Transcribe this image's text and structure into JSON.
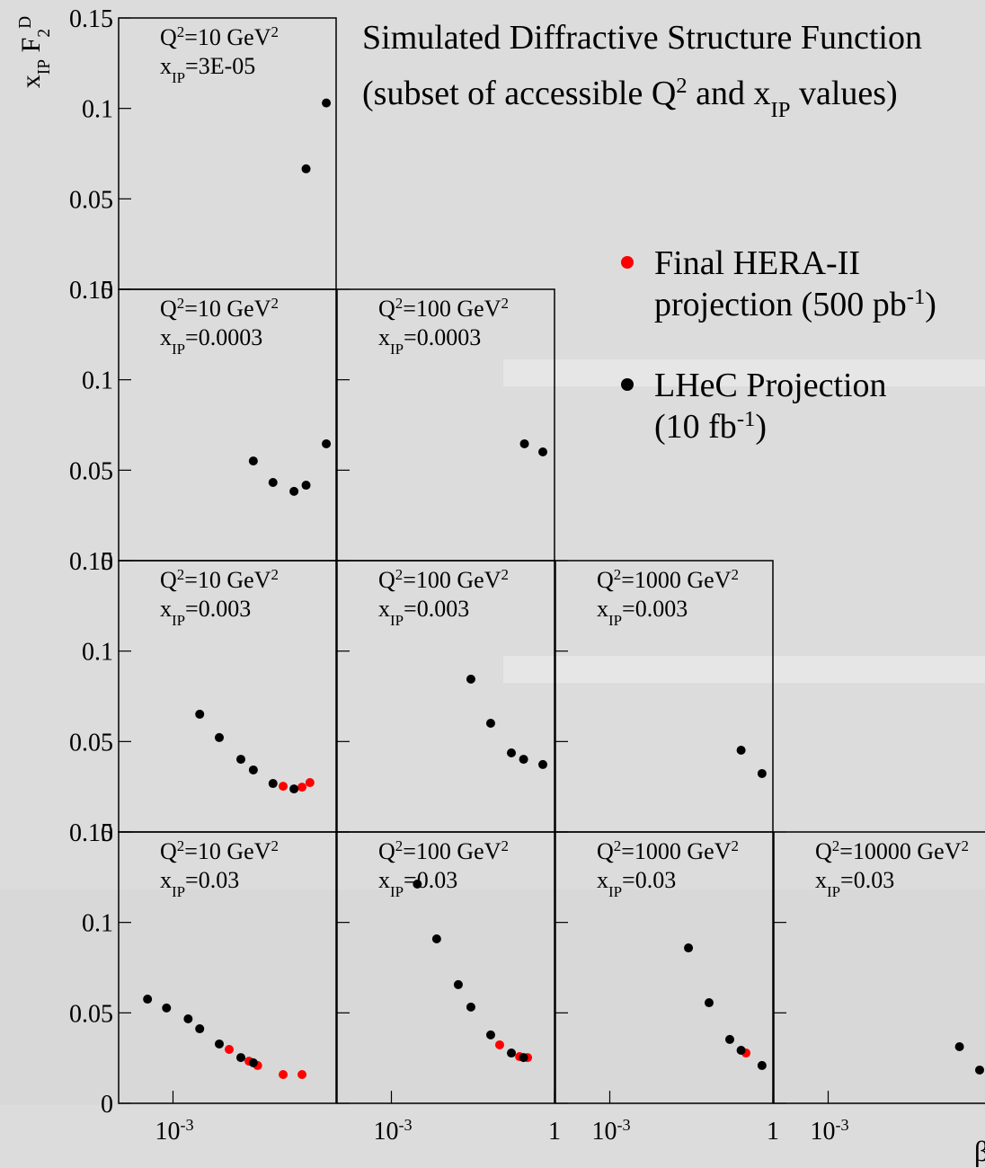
{
  "chart_data": {
    "type": "scatter",
    "title": [
      {
        "text": "Simulated Diffractive Structure Function"
      }
    ],
    "subtitle": [
      {
        "text": "(subset of accessible Q"
      },
      {
        "sup": "2"
      },
      {
        "text": " and x"
      },
      {
        "sub": "IP"
      },
      {
        "text": " values)"
      }
    ],
    "y_label": [
      {
        "text": "x"
      },
      {
        "sub": "IP"
      },
      {
        "text": " F"
      },
      {
        "sub": "2"
      },
      {
        "sup": "D"
      }
    ],
    "x_label": "β",
    "xscale": "log",
    "xlim": [
      0.0001,
      1
    ],
    "ylim": [
      0,
      0.15
    ],
    "yticks": [
      0,
      0.05,
      0.1,
      0.15
    ],
    "series": [
      {
        "name": [
          [
            {
              "text": "Final HERA-II"
            }
          ],
          [
            {
              "text": "projection (500 pb"
            },
            {
              "sup": "-1"
            },
            {
              "text": ")"
            }
          ]
        ],
        "color": "#ff0000"
      },
      {
        "name": [
          [
            {
              "text": "LHeC Projection"
            }
          ],
          [
            {
              "text": "(10 fb"
            },
            {
              "sup": "-1"
            },
            {
              "text": ")"
            }
          ]
        ],
        "color": "#000000"
      }
    ],
    "panels": [
      {
        "label": [
          [
            {
              "text": "Q"
            },
            {
              "sup": "2"
            },
            {
              "text": "=10 GeV"
            },
            {
              "sup": "2"
            }
          ],
          [
            {
              "text": "x"
            },
            {
              "sub": "IP"
            },
            {
              "text": "=3E-05"
            }
          ]
        ],
        "series": [
          {
            "x": [],
            "values": []
          },
          {
            "x": [
              0.28,
              0.66
            ],
            "values": [
              0.0666,
              0.103
            ]
          }
        ]
      },
      {
        "label": [
          [
            {
              "text": "Q"
            },
            {
              "sup": "2"
            },
            {
              "text": "=10 GeV"
            },
            {
              "sup": "2"
            }
          ],
          [
            {
              "text": "x"
            },
            {
              "sub": "IP"
            },
            {
              "text": "=0.0003"
            }
          ]
        ],
        "series": [
          {
            "x": [],
            "values": []
          },
          {
            "x": [
              0.03,
              0.069,
              0.168,
              0.28,
              0.66
            ],
            "values": [
              0.0551,
              0.0432,
              0.0383,
              0.0417,
              0.0646
            ]
          }
        ]
      },
      {
        "label": [
          [
            {
              "text": "Q"
            },
            {
              "sup": "2"
            },
            {
              "text": "=100 GeV"
            },
            {
              "sup": "2"
            }
          ],
          [
            {
              "text": "x"
            },
            {
              "sub": "IP"
            },
            {
              "text": "=0.0003"
            }
          ]
        ],
        "series": [
          {
            "x": [],
            "values": []
          },
          {
            "x": [
              0.28,
              0.61
            ],
            "values": [
              0.0646,
              0.0601
            ]
          }
        ]
      },
      {
        "label": [
          [
            {
              "text": "Q"
            },
            {
              "sup": "2"
            },
            {
              "text": "=10 GeV"
            },
            {
              "sup": "2"
            }
          ],
          [
            {
              "text": "x"
            },
            {
              "sub": "IP"
            },
            {
              "text": "=0.003"
            }
          ]
        ],
        "series": [
          {
            "x": [
              0.106,
              0.236,
              0.33
            ],
            "values": [
              0.0253,
              0.0248,
              0.0273
            ]
          },
          {
            "x": [
              0.0031,
              0.0071,
              0.0177,
              0.03,
              0.069,
              0.168
            ],
            "values": [
              0.0651,
              0.0522,
              0.0402,
              0.0343,
              0.0268,
              0.0238
            ]
          }
        ]
      },
      {
        "label": [
          [
            {
              "text": "Q"
            },
            {
              "sup": "2"
            },
            {
              "text": "=100 GeV"
            },
            {
              "sup": "2"
            }
          ],
          [
            {
              "text": "x"
            },
            {
              "sub": "IP"
            },
            {
              "text": "=0.003"
            }
          ]
        ],
        "series": [
          {
            "x": [],
            "values": []
          },
          {
            "x": [
              0.029,
              0.067,
              0.161,
              0.27,
              0.61
            ],
            "values": [
              0.0845,
              0.0601,
              0.0437,
              0.0402,
              0.0373
            ]
          }
        ]
      },
      {
        "label": [
          [
            {
              "text": "Q"
            },
            {
              "sup": "2"
            },
            {
              "text": "=1000 GeV"
            },
            {
              "sup": "2"
            }
          ],
          [
            {
              "text": "x"
            },
            {
              "sub": "IP"
            },
            {
              "text": "=0.003"
            }
          ]
        ],
        "series": [
          {
            "x": [],
            "values": []
          },
          {
            "x": [
              0.26,
              0.63
            ],
            "values": [
              0.0452,
              0.0323
            ]
          }
        ]
      },
      {
        "label": [
          [
            {
              "text": "Q"
            },
            {
              "sup": "2"
            },
            {
              "text": "=10 GeV"
            },
            {
              "sup": "2"
            }
          ],
          [
            {
              "text": "x"
            },
            {
              "sub": "IP"
            },
            {
              "text": "=0.03"
            }
          ]
        ],
        "xticks": [
          {
            "value": 0.001,
            "label": "10",
            "sup": "-3"
          }
        ],
        "series": [
          {
            "x": [
              0.0108,
              0.025,
              0.036,
              0.106,
              0.236
            ],
            "values": [
              0.0298,
              0.0233,
              0.0209,
              0.0159,
              0.0159
            ]
          },
          {
            "x": [
              0.00034,
              0.00076,
              0.0019,
              0.0031,
              0.0071,
              0.0177,
              0.03
            ],
            "values": [
              0.0576,
              0.0527,
              0.0467,
              0.0412,
              0.0328,
              0.0253,
              0.0224
            ]
          }
        ]
      },
      {
        "label": [
          [
            {
              "text": "Q"
            },
            {
              "sup": "2"
            },
            {
              "text": "=100 GeV"
            },
            {
              "sup": "2"
            }
          ],
          [
            {
              "text": "x"
            },
            {
              "sub": "IP"
            },
            {
              "text": "=0.03"
            }
          ]
        ],
        "xticks": [
          {
            "value": 0.001,
            "label": "10",
            "sup": "-3"
          },
          1
        ],
        "series": [
          {
            "x": [
              0.098,
              0.228,
              0.32
            ],
            "values": [
              0.0323,
              0.0258,
              0.0253
            ]
          },
          {
            "x": [
              0.003,
              0.0068,
              0.017,
              0.029,
              0.067,
              0.161,
              0.27
            ],
            "values": [
              0.1212,
              0.0909,
              0.0656,
              0.0532,
              0.0378,
              0.0278,
              0.0253
            ]
          }
        ]
      },
      {
        "label": [
          [
            {
              "text": "Q"
            },
            {
              "sup": "2"
            },
            {
              "text": "=1000 GeV"
            },
            {
              "sup": "2"
            }
          ],
          [
            {
              "text": "x"
            },
            {
              "sub": "IP"
            },
            {
              "text": "=0.03"
            }
          ]
        ],
        "xticks": [
          {
            "value": 0.001,
            "label": "10",
            "sup": "-3"
          },
          1
        ],
        "series": [
          {
            "x": [
              0.32
            ],
            "values": [
              0.0278
            ]
          },
          {
            "x": [
              0.028,
              0.067,
              0.161,
              0.26,
              0.63
            ],
            "values": [
              0.0859,
              0.0556,
              0.0353,
              0.0293,
              0.0209
            ]
          }
        ]
      },
      {
        "label": [
          [
            {
              "text": "Q"
            },
            {
              "sup": "2"
            },
            {
              "text": "=10000 GeV"
            },
            {
              "sup": "2"
            }
          ],
          [
            {
              "text": "x"
            },
            {
              "sub": "IP"
            },
            {
              "text": "=0.03"
            }
          ]
        ],
        "xticks": [
          {
            "value": 0.001,
            "label": "10",
            "sup": "-3"
          }
        ],
        "series": [
          {
            "x": [],
            "values": []
          },
          {
            "x": [
              0.26,
              0.61
            ],
            "values": [
              0.0313,
              0.0184
            ]
          }
        ]
      }
    ]
  }
}
